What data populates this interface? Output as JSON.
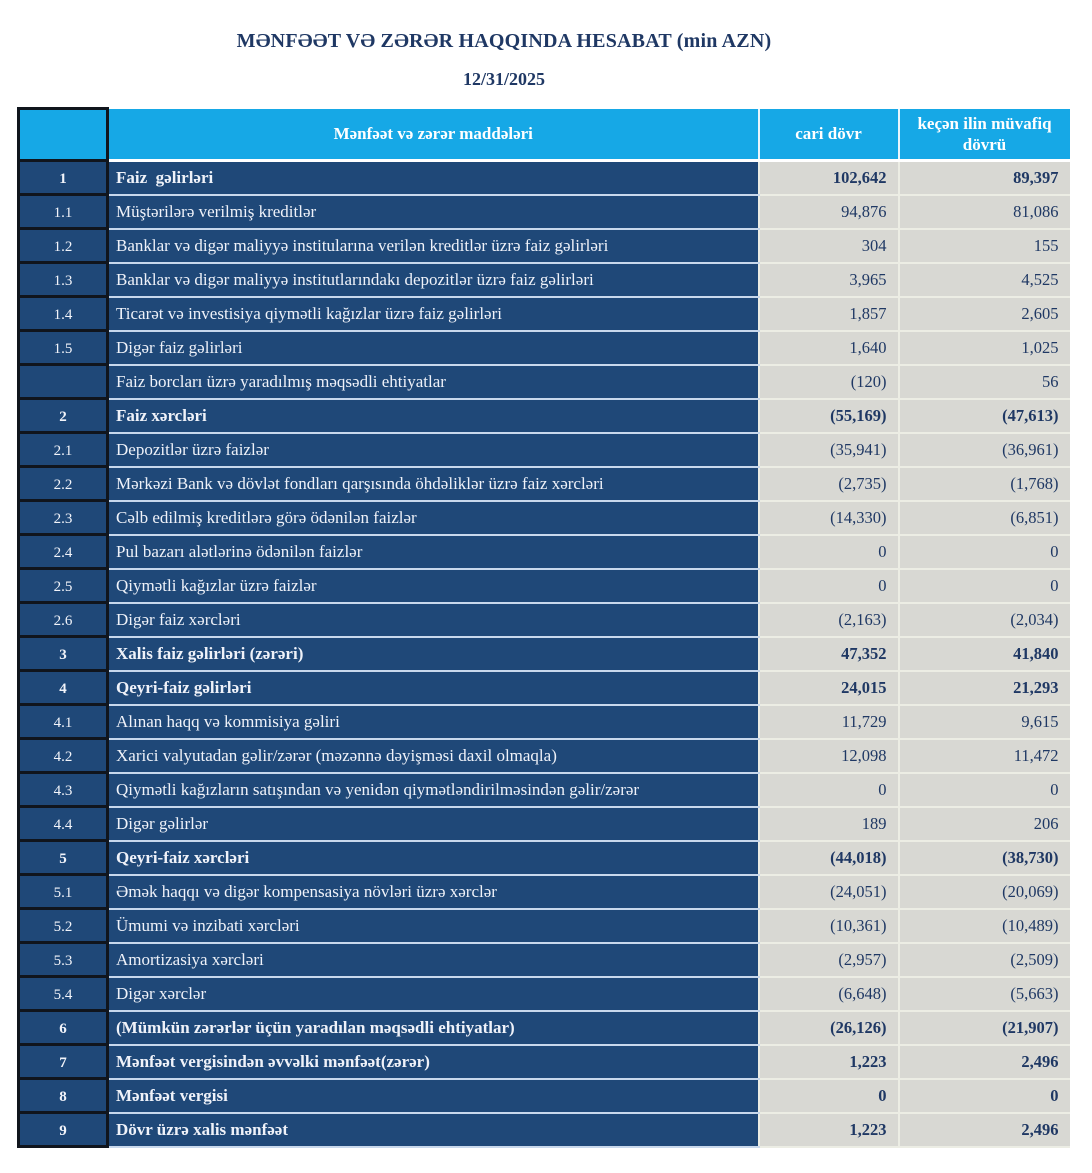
{
  "report": {
    "title": "MƏNFƏƏT VƏ ZƏRƏR HAQQINDA HESABAT (min AZN)",
    "date": "12/31/2025"
  },
  "colors": {
    "header_bg": "#16A8E6",
    "row_bg": "#1F4878",
    "value_bg": "#D8D8D3",
    "value_text": "#1F3864",
    "title_text": "#1F3864",
    "grid_black": "#10151D"
  },
  "table": {
    "headers": {
      "num": "",
      "items": "Mənfəət və zərər maddələri",
      "current": "cari dövr",
      "previous": "keçən ilin müvafiq dövrü"
    },
    "rows": [
      {
        "num": "1",
        "label": "Faiz  gəlirləri",
        "current": "102,642",
        "previous": "89,397",
        "bold": true
      },
      {
        "num": "1.1",
        "label": "Müştərilərə verilmiş kreditlər",
        "current": "94,876",
        "previous": "81,086",
        "bold": false
      },
      {
        "num": "1.2",
        "label": "Banklar və digər maliyyə institularına verilən kreditlər üzrə faiz gəlirləri",
        "current": "304",
        "previous": "155",
        "bold": false
      },
      {
        "num": "1.3",
        "label": "Banklar və digər maliyyə institutlarındakı depozitlər üzrə faiz gəlirləri",
        "current": "3,965",
        "previous": "4,525",
        "bold": false
      },
      {
        "num": "1.4",
        "label": "Ticarət və investisiya qiymətli kağızlar üzrə faiz gəlirləri",
        "current": "1,857",
        "previous": "2,605",
        "bold": false
      },
      {
        "num": "1.5",
        "label": "Digər faiz gəlirləri",
        "current": "1,640",
        "previous": "1,025",
        "bold": false
      },
      {
        "num": "",
        "label": "Faiz borcları üzrə yaradılmış məqsədli ehtiyatlar",
        "current": "(120)",
        "previous": "56",
        "bold": false
      },
      {
        "num": "2",
        "label": "Faiz xərcləri",
        "current": "(55,169)",
        "previous": "(47,613)",
        "bold": true
      },
      {
        "num": "2.1",
        "label": "Depozitlər üzrə faizlər",
        "current": "(35,941)",
        "previous": "(36,961)",
        "bold": false
      },
      {
        "num": "2.2",
        "label": "Mərkəzi Bank və dövlət fondları qarşısında öhdəliklər üzrə faiz xərcləri",
        "current": "(2,735)",
        "previous": "(1,768)",
        "bold": false
      },
      {
        "num": "2.3",
        "label": "Cəlb edilmiş kreditlərə görə ödənilən faizlər",
        "current": "(14,330)",
        "previous": "(6,851)",
        "bold": false
      },
      {
        "num": "2.4",
        "label": "Pul bazarı alətlərinə ödənilən faizlər",
        "current": "0",
        "previous": "0",
        "bold": false
      },
      {
        "num": "2.5",
        "label": "Qiymətli kağızlar üzrə faizlər",
        "current": "0",
        "previous": "0",
        "bold": false
      },
      {
        "num": "2.6",
        "label": "Digər faiz xərcləri",
        "current": "(2,163)",
        "previous": "(2,034)",
        "bold": false
      },
      {
        "num": "3",
        "label": "Xalis faiz gəlirləri (zərəri)",
        "current": "47,352",
        "previous": "41,840",
        "bold": true
      },
      {
        "num": "4",
        "label": "Qeyri-faiz gəlirləri",
        "current": "24,015",
        "previous": "21,293",
        "bold": true
      },
      {
        "num": "4.1",
        "label": "Alınan haqq və kommisiya gəliri",
        "current": "11,729",
        "previous": "9,615",
        "bold": false
      },
      {
        "num": "4.2",
        "label": "Xarici valyutadan gəlir/zərər (məzənnə dəyişməsi daxil olmaqla)",
        "current": "12,098",
        "previous": "11,472",
        "bold": false
      },
      {
        "num": "4.3",
        "label": "Qiymətli kağızların satışından və yenidən qiymətləndirilməsindən gəlir/zərər",
        "current": "0",
        "previous": "0",
        "bold": false
      },
      {
        "num": "4.4",
        "label": "Digər gəlirlər",
        "current": "189",
        "previous": "206",
        "bold": false
      },
      {
        "num": "5",
        "label": "Qeyri-faiz xərcləri",
        "current": "(44,018)",
        "previous": "(38,730)",
        "bold": true
      },
      {
        "num": "5.1",
        "label": "Əmək haqqı və digər kompensasiya növləri üzrə xərclər",
        "current": "(24,051)",
        "previous": "(20,069)",
        "bold": false
      },
      {
        "num": "5.2",
        "label": "Ümumi və inzibati xərcləri",
        "current": "(10,361)",
        "previous": "(10,489)",
        "bold": false
      },
      {
        "num": "5.3",
        "label": "Amortizasiya xərcləri",
        "current": "(2,957)",
        "previous": "(2,509)",
        "bold": false
      },
      {
        "num": "5.4",
        "label": "Digər xərclər",
        "current": "(6,648)",
        "previous": "(5,663)",
        "bold": false
      },
      {
        "num": "6",
        "label": "(Mümkün zərərlər üçün yaradılan məqsədli ehtiyatlar)",
        "current": "(26,126)",
        "previous": "(21,907)",
        "bold": true
      },
      {
        "num": "7",
        "label": "Mənfəət vergisindən əvvəlki mənfəət(zərər)",
        "current": "1,223",
        "previous": "2,496",
        "bold": true
      },
      {
        "num": "8",
        "label": "Mənfəət vergisi",
        "current": "0",
        "previous": "0",
        "bold": true
      },
      {
        "num": "9",
        "label": "Dövr üzrə xalis mənfəət",
        "current": "1,223",
        "previous": "2,496",
        "bold": true
      }
    ]
  }
}
